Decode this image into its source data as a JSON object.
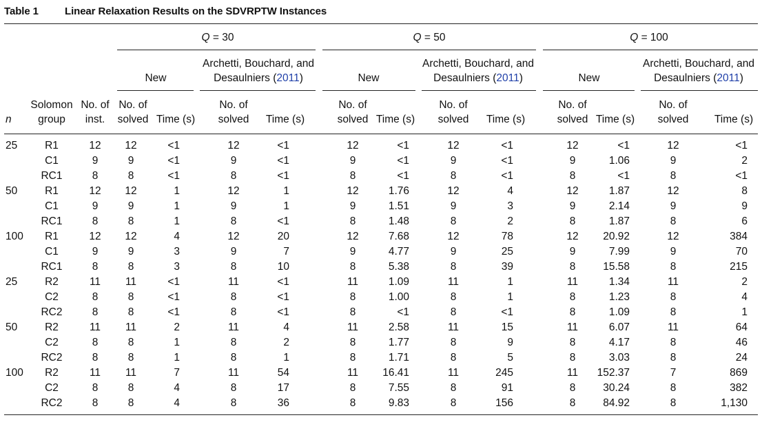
{
  "caption": {
    "label": "Table 1",
    "title": "Linear Relaxation Results on the SDVRPTW Instances"
  },
  "header": {
    "q_groups": [
      {
        "label": "Q = 30",
        "q": "Q",
        "eq": "=",
        "val": "30"
      },
      {
        "label": "Q = 50",
        "q": "Q",
        "eq": "=",
        "val": "50"
      },
      {
        "label": "Q = 100",
        "q": "Q",
        "eq": "=",
        "val": "100"
      }
    ],
    "method_new": "New",
    "method_ref_line1": "Archetti, Bouchard, and",
    "method_ref_line2_pre": "Desaulniers (",
    "method_ref_year": "2011",
    "method_ref_line2_post": ")",
    "col_n": "n",
    "col_solomon_1": "Solomon",
    "col_solomon_2": "group",
    "col_inst_1": "No. of",
    "col_inst_2": "inst.",
    "col_solved_1": "No. of",
    "col_solved_2": "solved",
    "col_time": "Time (s)"
  },
  "rows": [
    {
      "n": "25",
      "group": "R1",
      "inst": "12",
      "q30_new_solved": "12",
      "q30_new_time": "<1",
      "q30_ref_solved": "12",
      "q30_ref_time": "<1",
      "q50_new_solved": "12",
      "q50_new_time": "<1",
      "q50_ref_solved": "12",
      "q50_ref_time": "<1",
      "q100_new_solved": "12",
      "q100_new_time": "<1",
      "q100_ref_solved": "12",
      "q100_ref_time": "<1"
    },
    {
      "n": "",
      "group": "C1",
      "inst": "9",
      "q30_new_solved": "9",
      "q30_new_time": "<1",
      "q30_ref_solved": "9",
      "q30_ref_time": "<1",
      "q50_new_solved": "9",
      "q50_new_time": "<1",
      "q50_ref_solved": "9",
      "q50_ref_time": "<1",
      "q100_new_solved": "9",
      "q100_new_time": "1.06",
      "q100_ref_solved": "9",
      "q100_ref_time": "2"
    },
    {
      "n": "",
      "group": "RC1",
      "inst": "8",
      "q30_new_solved": "8",
      "q30_new_time": "<1",
      "q30_ref_solved": "8",
      "q30_ref_time": "<1",
      "q50_new_solved": "8",
      "q50_new_time": "<1",
      "q50_ref_solved": "8",
      "q50_ref_time": "<1",
      "q100_new_solved": "8",
      "q100_new_time": "<1",
      "q100_ref_solved": "8",
      "q100_ref_time": "<1"
    },
    {
      "n": "50",
      "group": "R1",
      "inst": "12",
      "q30_new_solved": "12",
      "q30_new_time": "1",
      "q30_ref_solved": "12",
      "q30_ref_time": "1",
      "q50_new_solved": "12",
      "q50_new_time": "1.76",
      "q50_ref_solved": "12",
      "q50_ref_time": "4",
      "q100_new_solved": "12",
      "q100_new_time": "1.87",
      "q100_ref_solved": "12",
      "q100_ref_time": "8"
    },
    {
      "n": "",
      "group": "C1",
      "inst": "9",
      "q30_new_solved": "9",
      "q30_new_time": "1",
      "q30_ref_solved": "9",
      "q30_ref_time": "1",
      "q50_new_solved": "9",
      "q50_new_time": "1.51",
      "q50_ref_solved": "9",
      "q50_ref_time": "3",
      "q100_new_solved": "9",
      "q100_new_time": "2.14",
      "q100_ref_solved": "9",
      "q100_ref_time": "9"
    },
    {
      "n": "",
      "group": "RC1",
      "inst": "8",
      "q30_new_solved": "8",
      "q30_new_time": "1",
      "q30_ref_solved": "8",
      "q30_ref_time": "<1",
      "q50_new_solved": "8",
      "q50_new_time": "1.48",
      "q50_ref_solved": "8",
      "q50_ref_time": "2",
      "q100_new_solved": "8",
      "q100_new_time": "1.87",
      "q100_ref_solved": "8",
      "q100_ref_time": "6"
    },
    {
      "n": "100",
      "group": "R1",
      "inst": "12",
      "q30_new_solved": "12",
      "q30_new_time": "4",
      "q30_ref_solved": "12",
      "q30_ref_time": "20",
      "q50_new_solved": "12",
      "q50_new_time": "7.68",
      "q50_ref_solved": "12",
      "q50_ref_time": "78",
      "q100_new_solved": "12",
      "q100_new_time": "20.92",
      "q100_ref_solved": "12",
      "q100_ref_time": "384"
    },
    {
      "n": "",
      "group": "C1",
      "inst": "9",
      "q30_new_solved": "9",
      "q30_new_time": "3",
      "q30_ref_solved": "9",
      "q30_ref_time": "7",
      "q50_new_solved": "9",
      "q50_new_time": "4.77",
      "q50_ref_solved": "9",
      "q50_ref_time": "25",
      "q100_new_solved": "9",
      "q100_new_time": "7.99",
      "q100_ref_solved": "9",
      "q100_ref_time": "70"
    },
    {
      "n": "",
      "group": "RC1",
      "inst": "8",
      "q30_new_solved": "8",
      "q30_new_time": "3",
      "q30_ref_solved": "8",
      "q30_ref_time": "10",
      "q50_new_solved": "8",
      "q50_new_time": "5.38",
      "q50_ref_solved": "8",
      "q50_ref_time": "39",
      "q100_new_solved": "8",
      "q100_new_time": "15.58",
      "q100_ref_solved": "8",
      "q100_ref_time": "215"
    },
    {
      "n": "25",
      "group": "R2",
      "inst": "11",
      "q30_new_solved": "11",
      "q30_new_time": "<1",
      "q30_ref_solved": "11",
      "q30_ref_time": "<1",
      "q50_new_solved": "11",
      "q50_new_time": "1.09",
      "q50_ref_solved": "11",
      "q50_ref_time": "1",
      "q100_new_solved": "11",
      "q100_new_time": "1.34",
      "q100_ref_solved": "11",
      "q100_ref_time": "2"
    },
    {
      "n": "",
      "group": "C2",
      "inst": "8",
      "q30_new_solved": "8",
      "q30_new_time": "<1",
      "q30_ref_solved": "8",
      "q30_ref_time": "<1",
      "q50_new_solved": "8",
      "q50_new_time": "1.00",
      "q50_ref_solved": "8",
      "q50_ref_time": "1",
      "q100_new_solved": "8",
      "q100_new_time": "1.23",
      "q100_ref_solved": "8",
      "q100_ref_time": "4"
    },
    {
      "n": "",
      "group": "RC2",
      "inst": "8",
      "q30_new_solved": "8",
      "q30_new_time": "<1",
      "q30_ref_solved": "8",
      "q30_ref_time": "<1",
      "q50_new_solved": "8",
      "q50_new_time": "<1",
      "q50_ref_solved": "8",
      "q50_ref_time": "<1",
      "q100_new_solved": "8",
      "q100_new_time": "1.09",
      "q100_ref_solved": "8",
      "q100_ref_time": "1"
    },
    {
      "n": "50",
      "group": "R2",
      "inst": "11",
      "q30_new_solved": "11",
      "q30_new_time": "2",
      "q30_ref_solved": "11",
      "q30_ref_time": "4",
      "q50_new_solved": "11",
      "q50_new_time": "2.58",
      "q50_ref_solved": "11",
      "q50_ref_time": "15",
      "q100_new_solved": "11",
      "q100_new_time": "6.07",
      "q100_ref_solved": "11",
      "q100_ref_time": "64"
    },
    {
      "n": "",
      "group": "C2",
      "inst": "8",
      "q30_new_solved": "8",
      "q30_new_time": "1",
      "q30_ref_solved": "8",
      "q30_ref_time": "2",
      "q50_new_solved": "8",
      "q50_new_time": "1.77",
      "q50_ref_solved": "8",
      "q50_ref_time": "9",
      "q100_new_solved": "8",
      "q100_new_time": "4.17",
      "q100_ref_solved": "8",
      "q100_ref_time": "46"
    },
    {
      "n": "",
      "group": "RC2",
      "inst": "8",
      "q30_new_solved": "8",
      "q30_new_time": "1",
      "q30_ref_solved": "8",
      "q30_ref_time": "1",
      "q50_new_solved": "8",
      "q50_new_time": "1.71",
      "q50_ref_solved": "8",
      "q50_ref_time": "5",
      "q100_new_solved": "8",
      "q100_new_time": "3.03",
      "q100_ref_solved": "8",
      "q100_ref_time": "24"
    },
    {
      "n": "100",
      "group": "R2",
      "inst": "11",
      "q30_new_solved": "11",
      "q30_new_time": "7",
      "q30_ref_solved": "11",
      "q30_ref_time": "54",
      "q50_new_solved": "11",
      "q50_new_time": "16.41",
      "q50_ref_solved": "11",
      "q50_ref_time": "245",
      "q100_new_solved": "11",
      "q100_new_time": "152.37",
      "q100_ref_solved": "7",
      "q100_ref_time": "869"
    },
    {
      "n": "",
      "group": "C2",
      "inst": "8",
      "q30_new_solved": "8",
      "q30_new_time": "4",
      "q30_ref_solved": "8",
      "q30_ref_time": "17",
      "q50_new_solved": "8",
      "q50_new_time": "7.55",
      "q50_ref_solved": "8",
      "q50_ref_time": "91",
      "q100_new_solved": "8",
      "q100_new_time": "30.24",
      "q100_ref_solved": "8",
      "q100_ref_time": "382"
    },
    {
      "n": "",
      "group": "RC2",
      "inst": "8",
      "q30_new_solved": "8",
      "q30_new_time": "4",
      "q30_ref_solved": "8",
      "q30_ref_time": "36",
      "q50_new_solved": "8",
      "q50_new_time": "9.83",
      "q50_ref_solved": "8",
      "q50_ref_time": "156",
      "q100_new_solved": "8",
      "q100_new_time": "84.92",
      "q100_ref_solved": "8",
      "q100_ref_time": "1,130"
    }
  ]
}
